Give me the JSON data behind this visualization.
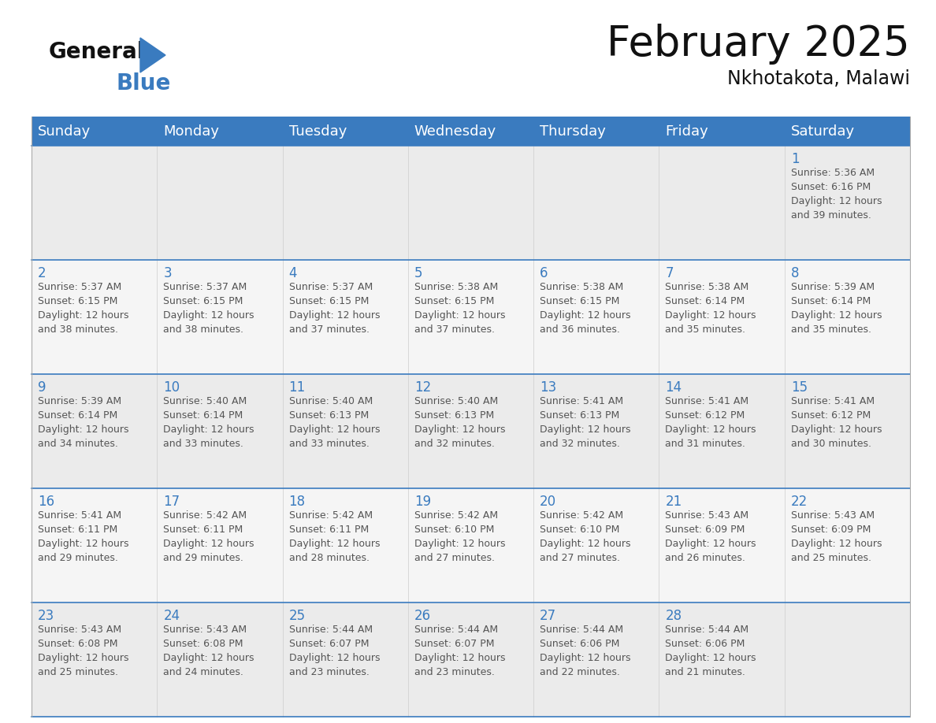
{
  "title": "February 2025",
  "subtitle": "Nkhotakota, Malawi",
  "header_color": "#3a7bbf",
  "header_text_color": "#ffffff",
  "cell_bg_row0": "#ebebeb",
  "cell_bg_row1": "#f5f5f5",
  "cell_bg_row2": "#ebebeb",
  "cell_bg_row3": "#f5f5f5",
  "cell_bg_row4": "#ebebeb",
  "day_headers": [
    "Sunday",
    "Monday",
    "Tuesday",
    "Wednesday",
    "Thursday",
    "Friday",
    "Saturday"
  ],
  "title_fontsize": 38,
  "subtitle_fontsize": 17,
  "header_fontsize": 13,
  "day_num_fontsize": 12,
  "info_fontsize": 9,
  "day_num_color": "#3a7bbf",
  "info_text_color": "#555555",
  "line_color": "#3a7bbf",
  "calendar": [
    [
      null,
      null,
      null,
      null,
      null,
      null,
      {
        "day": 1,
        "sunrise": "5:36 AM",
        "sunset": "6:16 PM",
        "daylight": "12 hours\nand 39 minutes."
      }
    ],
    [
      {
        "day": 2,
        "sunrise": "5:37 AM",
        "sunset": "6:15 PM",
        "daylight": "12 hours\nand 38 minutes."
      },
      {
        "day": 3,
        "sunrise": "5:37 AM",
        "sunset": "6:15 PM",
        "daylight": "12 hours\nand 38 minutes."
      },
      {
        "day": 4,
        "sunrise": "5:37 AM",
        "sunset": "6:15 PM",
        "daylight": "12 hours\nand 37 minutes."
      },
      {
        "day": 5,
        "sunrise": "5:38 AM",
        "sunset": "6:15 PM",
        "daylight": "12 hours\nand 37 minutes."
      },
      {
        "day": 6,
        "sunrise": "5:38 AM",
        "sunset": "6:15 PM",
        "daylight": "12 hours\nand 36 minutes."
      },
      {
        "day": 7,
        "sunrise": "5:38 AM",
        "sunset": "6:14 PM",
        "daylight": "12 hours\nand 35 minutes."
      },
      {
        "day": 8,
        "sunrise": "5:39 AM",
        "sunset": "6:14 PM",
        "daylight": "12 hours\nand 35 minutes."
      }
    ],
    [
      {
        "day": 9,
        "sunrise": "5:39 AM",
        "sunset": "6:14 PM",
        "daylight": "12 hours\nand 34 minutes."
      },
      {
        "day": 10,
        "sunrise": "5:40 AM",
        "sunset": "6:14 PM",
        "daylight": "12 hours\nand 33 minutes."
      },
      {
        "day": 11,
        "sunrise": "5:40 AM",
        "sunset": "6:13 PM",
        "daylight": "12 hours\nand 33 minutes."
      },
      {
        "day": 12,
        "sunrise": "5:40 AM",
        "sunset": "6:13 PM",
        "daylight": "12 hours\nand 32 minutes."
      },
      {
        "day": 13,
        "sunrise": "5:41 AM",
        "sunset": "6:13 PM",
        "daylight": "12 hours\nand 32 minutes."
      },
      {
        "day": 14,
        "sunrise": "5:41 AM",
        "sunset": "6:12 PM",
        "daylight": "12 hours\nand 31 minutes."
      },
      {
        "day": 15,
        "sunrise": "5:41 AM",
        "sunset": "6:12 PM",
        "daylight": "12 hours\nand 30 minutes."
      }
    ],
    [
      {
        "day": 16,
        "sunrise": "5:41 AM",
        "sunset": "6:11 PM",
        "daylight": "12 hours\nand 29 minutes."
      },
      {
        "day": 17,
        "sunrise": "5:42 AM",
        "sunset": "6:11 PM",
        "daylight": "12 hours\nand 29 minutes."
      },
      {
        "day": 18,
        "sunrise": "5:42 AM",
        "sunset": "6:11 PM",
        "daylight": "12 hours\nand 28 minutes."
      },
      {
        "day": 19,
        "sunrise": "5:42 AM",
        "sunset": "6:10 PM",
        "daylight": "12 hours\nand 27 minutes."
      },
      {
        "day": 20,
        "sunrise": "5:42 AM",
        "sunset": "6:10 PM",
        "daylight": "12 hours\nand 27 minutes."
      },
      {
        "day": 21,
        "sunrise": "5:43 AM",
        "sunset": "6:09 PM",
        "daylight": "12 hours\nand 26 minutes."
      },
      {
        "day": 22,
        "sunrise": "5:43 AM",
        "sunset": "6:09 PM",
        "daylight": "12 hours\nand 25 minutes."
      }
    ],
    [
      {
        "day": 23,
        "sunrise": "5:43 AM",
        "sunset": "6:08 PM",
        "daylight": "12 hours\nand 25 minutes."
      },
      {
        "day": 24,
        "sunrise": "5:43 AM",
        "sunset": "6:08 PM",
        "daylight": "12 hours\nand 24 minutes."
      },
      {
        "day": 25,
        "sunrise": "5:44 AM",
        "sunset": "6:07 PM",
        "daylight": "12 hours\nand 23 minutes."
      },
      {
        "day": 26,
        "sunrise": "5:44 AM",
        "sunset": "6:07 PM",
        "daylight": "12 hours\nand 23 minutes."
      },
      {
        "day": 27,
        "sunrise": "5:44 AM",
        "sunset": "6:06 PM",
        "daylight": "12 hours\nand 22 minutes."
      },
      {
        "day": 28,
        "sunrise": "5:44 AM",
        "sunset": "6:06 PM",
        "daylight": "12 hours\nand 21 minutes."
      },
      null
    ]
  ]
}
